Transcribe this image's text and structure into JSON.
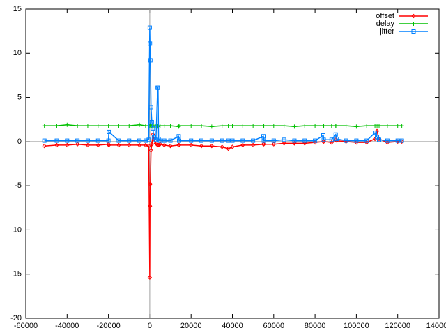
{
  "chart_data": {
    "type": "line",
    "x": [
      -51000,
      -45000,
      -40000,
      -35000,
      -30000,
      -25000,
      -20000,
      -19800,
      -15000,
      -10000,
      -5000,
      -2000,
      -500,
      0,
      100,
      300,
      600,
      1000,
      1500,
      2000,
      3000,
      3800,
      4000,
      4300,
      5000,
      7000,
      10000,
      14000,
      14200,
      20000,
      25000,
      30000,
      35000,
      38000,
      40000,
      45000,
      50000,
      55000,
      55200,
      60000,
      65000,
      70000,
      75000,
      80000,
      84000,
      84200,
      88000,
      90000,
      90500,
      95000,
      100000,
      105000,
      109000,
      110000,
      111000,
      115000,
      120000,
      122000
    ],
    "series": [
      {
        "name": "offset",
        "color": "#ff0000",
        "marker": "diamond",
        "values": [
          -0.5,
          -0.4,
          -0.4,
          -0.3,
          -0.4,
          -0.4,
          -0.3,
          -0.4,
          -0.4,
          -0.4,
          -0.4,
          -0.4,
          -0.5,
          -15.4,
          -7.3,
          -4.8,
          -1,
          -0.3,
          0.8,
          0.3,
          -0.2,
          -0.4,
          -0.4,
          -0.4,
          -0.3,
          -0.4,
          -0.5,
          -0.4,
          -0.4,
          -0.4,
          -0.5,
          -0.5,
          -0.6,
          -0.8,
          -0.6,
          -0.4,
          -0.4,
          -0.3,
          -0.3,
          -0.3,
          -0.2,
          -0.2,
          -0.2,
          -0.1,
          0,
          0,
          -0.1,
          0.2,
          0.1,
          0,
          -0.1,
          -0.1,
          0.3,
          1.2,
          0.3,
          -0.1,
          0,
          0
        ]
      },
      {
        "name": "delay",
        "color": "#00c000",
        "marker": "plus",
        "values": [
          1.8,
          1.8,
          1.9,
          1.8,
          1.8,
          1.8,
          1.8,
          1.8,
          1.8,
          1.8,
          1.9,
          1.8,
          1.8,
          1.8,
          1.8,
          1.9,
          1.8,
          1.8,
          1.8,
          1.8,
          1.8,
          1.8,
          1.7,
          1.8,
          1.8,
          1.8,
          1.8,
          1.7,
          1.8,
          1.8,
          1.8,
          1.7,
          1.8,
          1.8,
          1.8,
          1.8,
          1.8,
          1.8,
          1.8,
          1.8,
          1.8,
          1.7,
          1.8,
          1.8,
          1.8,
          1.8,
          1.8,
          1.8,
          1.8,
          1.8,
          1.7,
          1.8,
          1.8,
          1.8,
          1.8,
          1.8,
          1.8,
          1.8
        ]
      },
      {
        "name": "jitter",
        "color": "#0080ff",
        "marker": "square",
        "values": [
          0.1,
          0.1,
          0.1,
          0.1,
          0.1,
          0.1,
          0.1,
          1.1,
          0.1,
          0.1,
          0.1,
          0.1,
          0.2,
          12.9,
          11.1,
          9.2,
          3.9,
          2.2,
          1.5,
          0.5,
          0.2,
          6.1,
          6.1,
          0.3,
          0.1,
          0.1,
          0.1,
          0.6,
          0.1,
          0.1,
          0.1,
          0.1,
          0.1,
          0.1,
          0.1,
          0.1,
          0.1,
          0.6,
          0.1,
          0.1,
          0.2,
          0.1,
          0.1,
          0.1,
          0.7,
          0.2,
          0.2,
          0.8,
          0.3,
          0.1,
          0.1,
          0.1,
          1.0,
          0.5,
          0.2,
          0.1,
          0.1,
          0.1
        ]
      }
    ],
    "xlim": [
      -60000,
      140000
    ],
    "xticks": [
      -60000,
      -40000,
      -20000,
      0,
      20000,
      40000,
      60000,
      80000,
      100000,
      120000,
      140000
    ],
    "ylim": [
      -20,
      15
    ],
    "yticks": [
      -20,
      -15,
      -10,
      -5,
      0,
      5,
      10,
      15
    ],
    "legend": "top-right"
  }
}
